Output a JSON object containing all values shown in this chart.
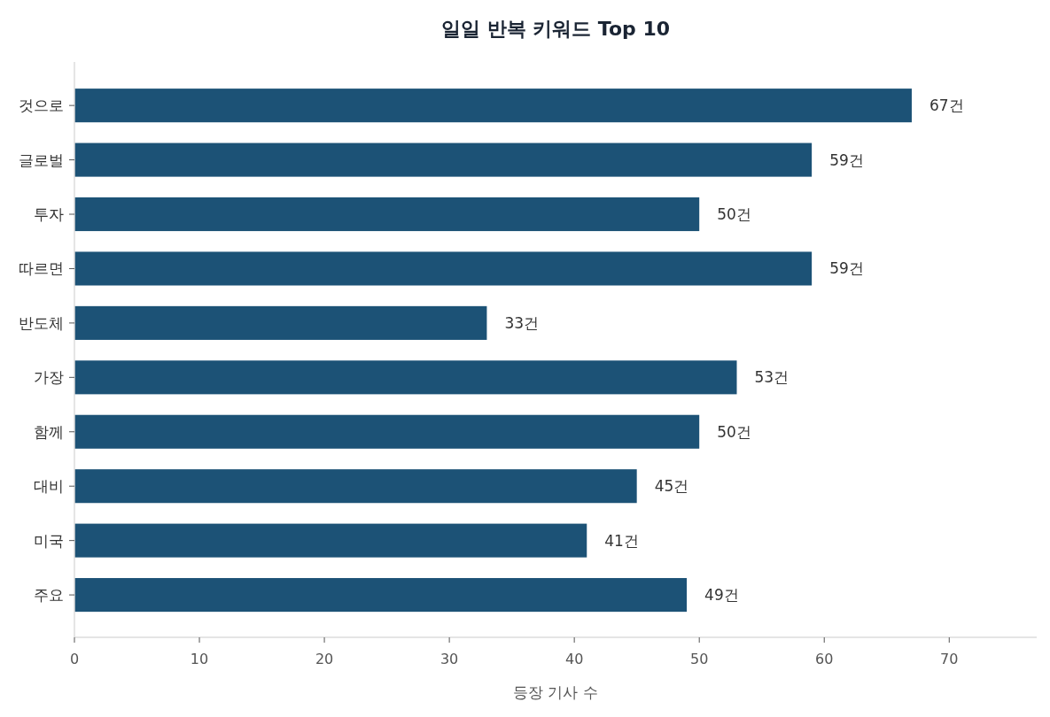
{
  "chart_data": {
    "type": "bar",
    "orientation": "horizontal",
    "title": "일일 반복 키워드 Top 10",
    "xlabel": "등장 기사 수",
    "categories": [
      "것으로",
      "글로벌",
      "투자",
      "따르면",
      "반도체",
      "가장",
      "함께",
      "대비",
      "미국",
      "주요"
    ],
    "values": [
      67,
      59,
      50,
      59,
      33,
      53,
      50,
      45,
      41,
      49
    ],
    "value_labels": [
      "67건",
      "59건",
      "50건",
      "59건",
      "33건",
      "53건",
      "50건",
      "45건",
      "41건",
      "49건"
    ],
    "color": "#1c5276",
    "xlim": [
      0,
      77
    ],
    "xticks": [
      0,
      10,
      20,
      30,
      40,
      50,
      60,
      70
    ],
    "grid": false
  }
}
